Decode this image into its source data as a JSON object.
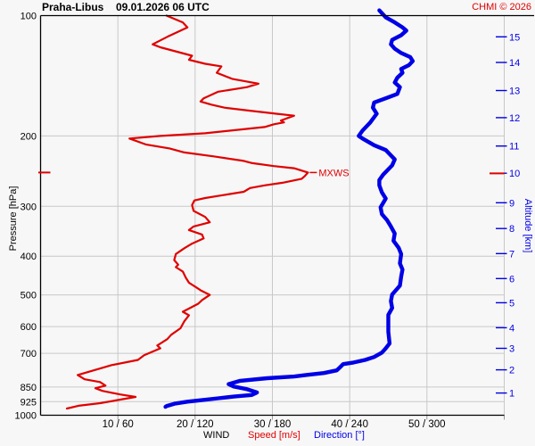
{
  "header": {
    "station": "Praha-Libus",
    "datetime": "09.01.2026 06 UTC",
    "copyright": "CHMI © 2026"
  },
  "legend": {
    "wind": "WIND",
    "speed": "Speed [m/s]",
    "direction": "Direction [°]"
  },
  "chart_data": {
    "type": "line",
    "title": "Praha-Libus 09.01.2026 06 UTC — vertical wind profile",
    "ylabel_left": "Pressure [hPa]",
    "ylabel_right": "Altitude [km]",
    "xlabel": "WIND  Speed [m/s]  Direction [°]",
    "y_scale": "log",
    "p_range": [
      100,
      1000
    ],
    "speed_range": [
      0,
      60
    ],
    "direction_range": [
      0,
      360
    ],
    "grid": true,
    "pressure_ticks": [
      100,
      200,
      300,
      400,
      500,
      600,
      700,
      850,
      925,
      1000
    ],
    "altitude_ticks": [
      [
        1,
        880
      ],
      [
        2,
        770
      ],
      [
        3,
        680
      ],
      [
        4,
        604
      ],
      [
        5,
        523
      ],
      [
        6,
        455
      ],
      [
        7,
        394
      ],
      [
        8,
        341
      ],
      [
        9,
        294
      ],
      [
        10,
        248
      ],
      [
        11,
        212
      ],
      [
        12,
        180
      ],
      [
        13,
        154
      ],
      [
        14,
        131
      ],
      [
        15,
        113
      ]
    ],
    "x_ticks": [
      {
        "speed": 10,
        "dir": 60,
        "label": "10 / 60"
      },
      {
        "speed": 20,
        "dir": 120,
        "label": "20 / 120"
      },
      {
        "speed": 30,
        "dir": 180,
        "label": "30 / 180"
      },
      {
        "speed": 40,
        "dir": 240,
        "label": "40 / 240"
      },
      {
        "speed": 50,
        "dir": 300,
        "label": "50 / 300"
      },
      {
        "speed": 60,
        "dir": 360,
        "label": ""
      }
    ],
    "colors": {
      "speed": "#e00000",
      "direction": "#0000e6",
      "grid": "#c8c8c8",
      "frame": "#000000",
      "tick_minor": "#999999"
    },
    "mxws": {
      "label": "MXWS",
      "pressure": 247,
      "speed": 34.6
    },
    "series": [
      {
        "name": "Speed [m/s]",
        "unit": "m/s",
        "color": "#e00000",
        "points": [
          [
            16.3,
            100
          ],
          [
            18.4,
            104
          ],
          [
            19.0,
            107
          ],
          [
            16.4,
            113
          ],
          [
            14.5,
            118
          ],
          [
            15.5,
            120
          ],
          [
            19.6,
            126
          ],
          [
            19.2,
            129
          ],
          [
            21.3,
            132
          ],
          [
            23.4,
            134
          ],
          [
            22.8,
            139
          ],
          [
            24.8,
            144
          ],
          [
            28.2,
            148
          ],
          [
            26.7,
            151
          ],
          [
            23.0,
            155
          ],
          [
            21.1,
            161
          ],
          [
            20.7,
            164
          ],
          [
            22.1,
            167
          ],
          [
            23.8,
            170
          ],
          [
            27.1,
            173
          ],
          [
            30.5,
            176
          ],
          [
            32.8,
            178
          ],
          [
            31.1,
            183
          ],
          [
            31.5,
            185
          ],
          [
            30.2,
            187
          ],
          [
            29.0,
            190
          ],
          [
            21.3,
            197
          ],
          [
            15.5,
            200
          ],
          [
            11.5,
            203
          ],
          [
            13.6,
            210
          ],
          [
            16.7,
            215
          ],
          [
            18.6,
            220
          ],
          [
            22.4,
            225
          ],
          [
            26.3,
            231
          ],
          [
            27.4,
            234
          ],
          [
            30.2,
            238
          ],
          [
            32.8,
            241
          ],
          [
            34.6,
            247
          ],
          [
            34.2,
            252
          ],
          [
            33.8,
            256
          ],
          [
            31.3,
            262
          ],
          [
            29.0,
            266
          ],
          [
            27.1,
            270
          ],
          [
            26.3,
            276
          ],
          [
            23.3,
            282
          ],
          [
            21.3,
            286
          ],
          [
            19.9,
            290
          ],
          [
            19.6,
            298
          ],
          [
            19.8,
            308
          ],
          [
            21.3,
            319
          ],
          [
            21.9,
            329
          ],
          [
            19.8,
            337
          ],
          [
            19.2,
            344
          ],
          [
            20.9,
            353
          ],
          [
            21.1,
            361
          ],
          [
            19.6,
            372
          ],
          [
            18.6,
            382
          ],
          [
            17.5,
            395
          ],
          [
            17.3,
            409
          ],
          [
            17.8,
            420
          ],
          [
            17.5,
            426
          ],
          [
            18.4,
            437
          ],
          [
            18.8,
            453
          ],
          [
            19.2,
            466
          ],
          [
            20.1,
            478
          ],
          [
            20.8,
            488
          ],
          [
            21.9,
            500
          ],
          [
            20.9,
            515
          ],
          [
            20.4,
            526
          ],
          [
            18.4,
            551
          ],
          [
            19.2,
            562
          ],
          [
            18.6,
            582
          ],
          [
            18.1,
            606
          ],
          [
            16.9,
            629
          ],
          [
            16.4,
            645
          ],
          [
            15.1,
            669
          ],
          [
            15.5,
            680
          ],
          [
            13.4,
            708
          ],
          [
            12.6,
            727
          ],
          [
            9.2,
            749
          ],
          [
            4.8,
            793
          ],
          [
            5.7,
            813
          ],
          [
            7.7,
            826
          ],
          [
            8.4,
            843
          ],
          [
            7.1,
            856
          ],
          [
            8.0,
            869
          ],
          [
            10.3,
            887
          ],
          [
            12.3,
            900
          ],
          [
            10.3,
            914
          ],
          [
            7.7,
            933
          ],
          [
            4.9,
            947
          ],
          [
            3.4,
            962
          ]
        ]
      },
      {
        "name": "Direction [°]",
        "unit": "deg",
        "color": "#0000e6",
        "points": [
          [
            263,
            97
          ],
          [
            268,
            101
          ],
          [
            275,
            104
          ],
          [
            281,
            107
          ],
          [
            284,
            109
          ],
          [
            280,
            112
          ],
          [
            273,
            115
          ],
          [
            272,
            118
          ],
          [
            275,
            121
          ],
          [
            280,
            124
          ],
          [
            287,
            127
          ],
          [
            289,
            130
          ],
          [
            286,
            133
          ],
          [
            280,
            136
          ],
          [
            281,
            139
          ],
          [
            277,
            143
          ],
          [
            275,
            147
          ],
          [
            279,
            151
          ],
          [
            277,
            157
          ],
          [
            268,
            161
          ],
          [
            259,
            165
          ],
          [
            258,
            170
          ],
          [
            261,
            176
          ],
          [
            256,
            185
          ],
          [
            250,
            194
          ],
          [
            247,
            200
          ],
          [
            250,
            203
          ],
          [
            259,
            211
          ],
          [
            268,
            217
          ],
          [
            275,
            229
          ],
          [
            273,
            237
          ],
          [
            266,
            250
          ],
          [
            263,
            258
          ],
          [
            263,
            266
          ],
          [
            265,
            277
          ],
          [
            268,
            287
          ],
          [
            264,
            302
          ],
          [
            265,
            314
          ],
          [
            269,
            325
          ],
          [
            272,
            337
          ],
          [
            275,
            351
          ],
          [
            274,
            366
          ],
          [
            278,
            381
          ],
          [
            280,
            395
          ],
          [
            279,
            417
          ],
          [
            281,
            432
          ],
          [
            280,
            450
          ],
          [
            279,
            474
          ],
          [
            273,
            499
          ],
          [
            272,
            518
          ],
          [
            273,
            539
          ],
          [
            270,
            561
          ],
          [
            270,
            587
          ],
          [
            270,
            618
          ],
          [
            271,
            661
          ],
          [
            268,
            680
          ],
          [
            265,
            697
          ],
          [
            259,
            715
          ],
          [
            252,
            727
          ],
          [
            243,
            738
          ],
          [
            235,
            745
          ],
          [
            232,
            761
          ],
          [
            230,
            772
          ],
          [
            220,
            784
          ],
          [
            206,
            793
          ],
          [
            197,
            800
          ],
          [
            176,
            808
          ],
          [
            155,
            820
          ],
          [
            146,
            836
          ],
          [
            150,
            848
          ],
          [
            160,
            860
          ],
          [
            168,
            877
          ],
          [
            164,
            890
          ],
          [
            150,
            898
          ],
          [
            138,
            907
          ],
          [
            126,
            916
          ],
          [
            114,
            925
          ],
          [
            104,
            936
          ],
          [
            98,
            948
          ],
          [
            97,
            953
          ]
        ]
      }
    ]
  }
}
